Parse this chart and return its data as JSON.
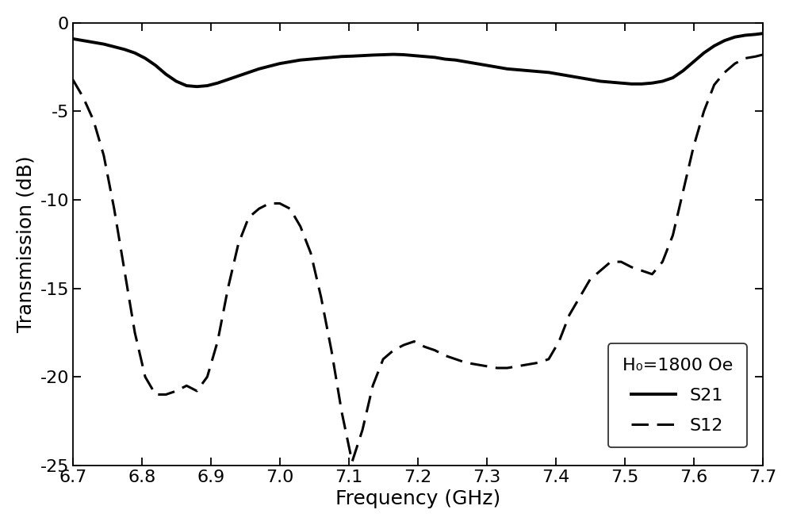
{
  "title": "",
  "xlabel": "Frequency (GHz)",
  "ylabel": "Transmission (dB)",
  "xlim": [
    6.7,
    7.7
  ],
  "ylim": [
    -25,
    0
  ],
  "xticks": [
    6.7,
    6.8,
    6.9,
    7.0,
    7.1,
    7.2,
    7.3,
    7.4,
    7.5,
    7.6,
    7.7
  ],
  "yticks": [
    0,
    -5,
    -10,
    -15,
    -20,
    -25
  ],
  "legend_header": "H₀=1800 Oe",
  "legend_s21": "S21",
  "legend_s12": "S12",
  "s21_x": [
    6.7,
    6.715,
    6.73,
    6.745,
    6.76,
    6.775,
    6.79,
    6.805,
    6.82,
    6.835,
    6.85,
    6.865,
    6.88,
    6.895,
    6.91,
    6.925,
    6.94,
    6.955,
    6.97,
    6.985,
    7.0,
    7.015,
    7.03,
    7.045,
    7.06,
    7.075,
    7.09,
    7.105,
    7.12,
    7.135,
    7.15,
    7.165,
    7.18,
    7.195,
    7.21,
    7.225,
    7.24,
    7.255,
    7.27,
    7.285,
    7.3,
    7.315,
    7.33,
    7.345,
    7.36,
    7.375,
    7.39,
    7.405,
    7.42,
    7.435,
    7.45,
    7.465,
    7.48,
    7.495,
    7.51,
    7.525,
    7.54,
    7.555,
    7.57,
    7.585,
    7.6,
    7.615,
    7.63,
    7.645,
    7.66,
    7.675,
    7.69,
    7.7
  ],
  "s21_y": [
    -0.9,
    -1.0,
    -1.1,
    -1.2,
    -1.35,
    -1.5,
    -1.7,
    -2.0,
    -2.4,
    -2.9,
    -3.3,
    -3.55,
    -3.6,
    -3.55,
    -3.4,
    -3.2,
    -3.0,
    -2.8,
    -2.6,
    -2.45,
    -2.3,
    -2.2,
    -2.1,
    -2.05,
    -2.0,
    -1.95,
    -1.9,
    -1.88,
    -1.85,
    -1.82,
    -1.8,
    -1.78,
    -1.8,
    -1.85,
    -1.9,
    -1.95,
    -2.05,
    -2.1,
    -2.2,
    -2.3,
    -2.4,
    -2.5,
    -2.6,
    -2.65,
    -2.7,
    -2.75,
    -2.8,
    -2.9,
    -3.0,
    -3.1,
    -3.2,
    -3.3,
    -3.35,
    -3.4,
    -3.45,
    -3.45,
    -3.4,
    -3.3,
    -3.1,
    -2.7,
    -2.2,
    -1.7,
    -1.3,
    -1.0,
    -0.8,
    -0.7,
    -0.65,
    -0.6
  ],
  "s12_x": [
    6.7,
    6.715,
    6.73,
    6.745,
    6.76,
    6.775,
    6.79,
    6.805,
    6.82,
    6.835,
    6.85,
    6.865,
    6.88,
    6.895,
    6.91,
    6.925,
    6.94,
    6.955,
    6.97,
    6.985,
    7.0,
    7.015,
    7.03,
    7.045,
    7.06,
    7.075,
    7.09,
    7.105,
    7.12,
    7.135,
    7.15,
    7.165,
    7.18,
    7.195,
    7.21,
    7.225,
    7.24,
    7.255,
    7.27,
    7.285,
    7.3,
    7.315,
    7.33,
    7.345,
    7.36,
    7.375,
    7.39,
    7.405,
    7.42,
    7.435,
    7.45,
    7.465,
    7.48,
    7.495,
    7.51,
    7.525,
    7.54,
    7.555,
    7.57,
    7.585,
    7.6,
    7.615,
    7.63,
    7.645,
    7.66,
    7.675,
    7.69,
    7.7
  ],
  "s12_y": [
    -3.2,
    -4.2,
    -5.5,
    -7.5,
    -10.5,
    -14.0,
    -17.5,
    -20.0,
    -21.0,
    -21.0,
    -20.8,
    -20.5,
    -20.8,
    -20.0,
    -18.0,
    -15.0,
    -12.5,
    -11.0,
    -10.5,
    -10.2,
    -10.2,
    -10.5,
    -11.5,
    -13.0,
    -15.5,
    -18.5,
    -22.0,
    -24.8,
    -23.0,
    -20.5,
    -19.0,
    -18.5,
    -18.2,
    -18.0,
    -18.3,
    -18.5,
    -18.8,
    -19.0,
    -19.2,
    -19.3,
    -19.4,
    -19.5,
    -19.5,
    -19.4,
    -19.3,
    -19.2,
    -19.0,
    -18.0,
    -16.5,
    -15.5,
    -14.5,
    -14.0,
    -13.5,
    -13.5,
    -13.8,
    -14.0,
    -14.2,
    -13.5,
    -12.0,
    -9.5,
    -7.0,
    -5.0,
    -3.5,
    -2.8,
    -2.3,
    -2.0,
    -1.9,
    -1.8
  ],
  "line_color": "#000000",
  "linewidth_s21": 2.8,
  "linewidth_s12": 2.2,
  "background_color": "#ffffff",
  "tick_fontsize": 16,
  "label_fontsize": 18
}
